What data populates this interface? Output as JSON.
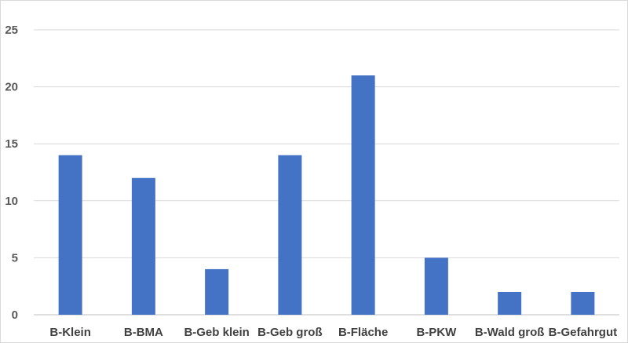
{
  "chart_data": {
    "type": "bar",
    "title": "",
    "xlabel": "",
    "ylabel": "",
    "categories": [
      "B-Klein",
      "B-BMA",
      "B-Geb klein",
      "B-Geb groß",
      "B-Fläche",
      "B-PKW",
      "B-Wald groß",
      "B-Gefahrgut"
    ],
    "values": [
      14,
      12,
      4,
      14,
      21,
      5,
      2,
      2
    ],
    "ylim": [
      0,
      25
    ],
    "yticks": [
      0,
      5,
      10,
      15,
      20,
      25
    ],
    "grid": true,
    "legend": "none",
    "colors": {
      "bar": "#4472C4",
      "grid": "#d9d9d9",
      "axis": "#bfbfbf"
    }
  }
}
